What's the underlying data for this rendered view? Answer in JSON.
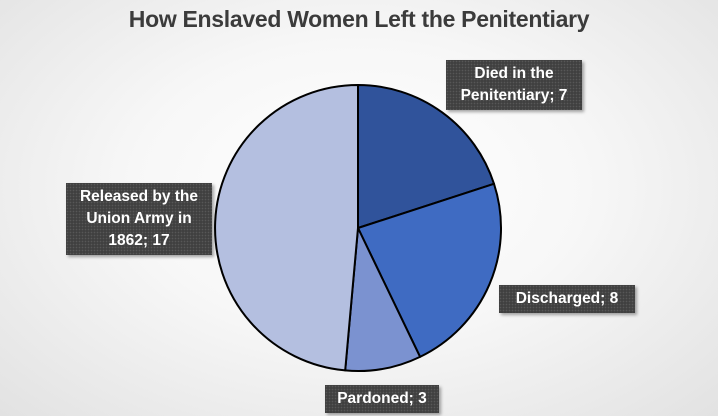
{
  "chart_data": {
    "type": "pie",
    "title": "How Enslaved Women Left the Penitentiary",
    "categories": [
      "Died in the Penitentiary",
      "Discharged",
      "Pardoned",
      "Released by the Union Army in 1862"
    ],
    "values": [
      7,
      8,
      3,
      17
    ],
    "data_labels": [
      "Died in the\nPenitentiary; 7",
      "Discharged; 8",
      "Pardoned; 3",
      "Released by the\nUnion Army in\n1862; 17"
    ],
    "colors": [
      "#30539b",
      "#3f6bc2",
      "#7b92d0",
      "#b4bfe0"
    ],
    "start_angle_deg": 0,
    "direction": "clockwise",
    "legend": "none"
  }
}
